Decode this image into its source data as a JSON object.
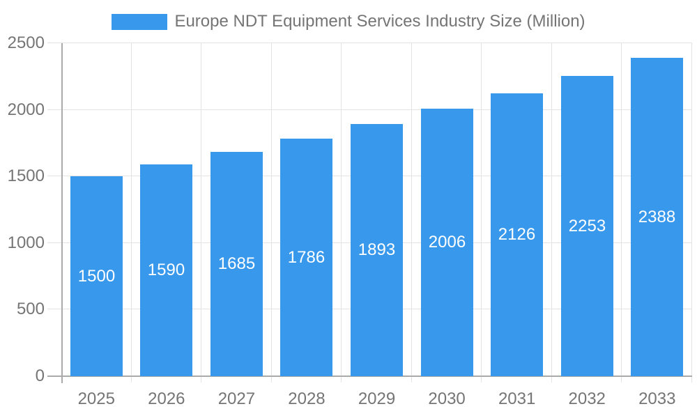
{
  "chart_data": {
    "type": "bar",
    "title": "Europe NDT Equipment Services Industry Size (Million)",
    "categories": [
      "2025",
      "2026",
      "2027",
      "2028",
      "2029",
      "2030",
      "2031",
      "2032",
      "2033"
    ],
    "values": [
      1500,
      1590,
      1685,
      1786,
      1893,
      2006,
      2126,
      2253,
      2388
    ],
    "xlabel": "",
    "ylabel": "",
    "ylim": [
      0,
      2500
    ],
    "yticks": [
      0,
      500,
      1000,
      1500,
      2000,
      2500
    ],
    "grid": true,
    "legend_position": "top",
    "value_label_position": "inside-center",
    "colors": {
      "bar": "#3898EC",
      "title_text": "#757575",
      "axis_label_text": "#757575",
      "value_label_text": "#FFFFFF",
      "grid_line": "#E3E3E3",
      "axis_line": "#AAAAAA",
      "background": "#FFFFFF"
    }
  }
}
